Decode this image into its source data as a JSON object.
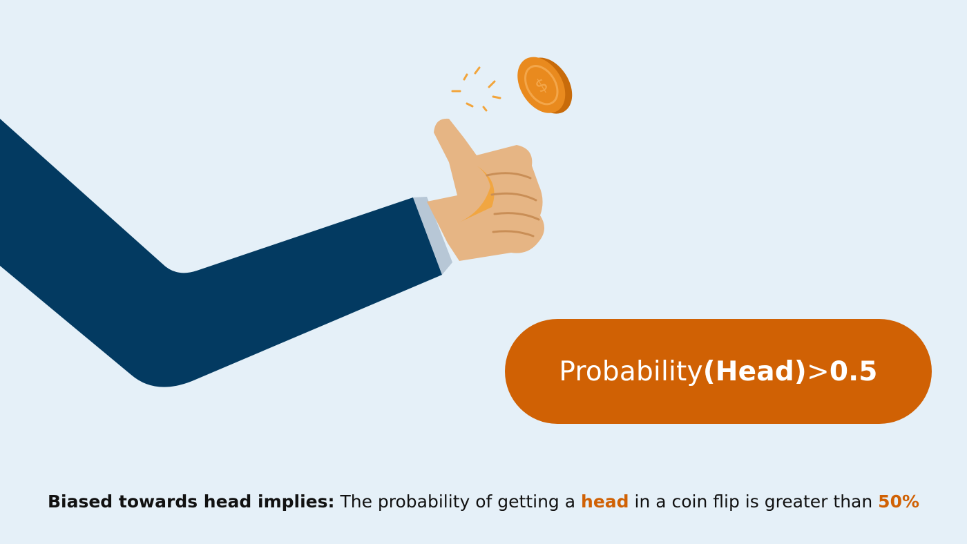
{
  "formula": {
    "prefix": "Probability",
    "bold_part": "(Head)",
    "operator": ">",
    "value": "0.5"
  },
  "caption": {
    "lead": "Biased towards head implies:",
    "text_before": " The probability of getting a ",
    "highlight_word": "head",
    "text_middle": " in a coin flip is greater than ",
    "highlight_value": "50%"
  },
  "colors": {
    "background": "#e5f0f8",
    "sleeve": "#033a61",
    "skin": "#e6b584",
    "coin": "#e98a1e",
    "accent": "#d06104"
  },
  "icons": {
    "coin": "coin-icon"
  }
}
